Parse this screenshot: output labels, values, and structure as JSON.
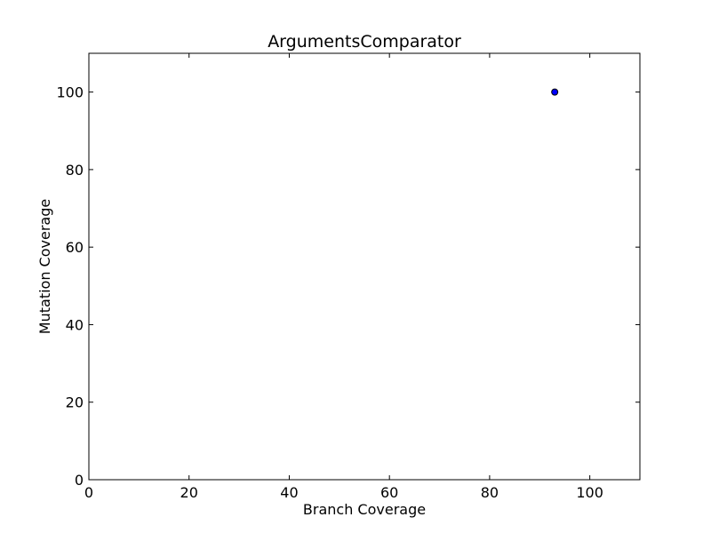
{
  "chart_data": {
    "type": "scatter",
    "title": "ArgumentsComparator",
    "xlabel": "Branch Coverage",
    "ylabel": "Mutation Coverage",
    "xlim": [
      0,
      110
    ],
    "ylim": [
      0,
      110
    ],
    "xticks": [
      0,
      20,
      40,
      60,
      80,
      100
    ],
    "yticks": [
      0,
      20,
      40,
      60,
      80,
      100
    ],
    "grid": false,
    "points": [
      {
        "x": 93,
        "y": 100
      }
    ],
    "marker_color": "#0000ff"
  }
}
